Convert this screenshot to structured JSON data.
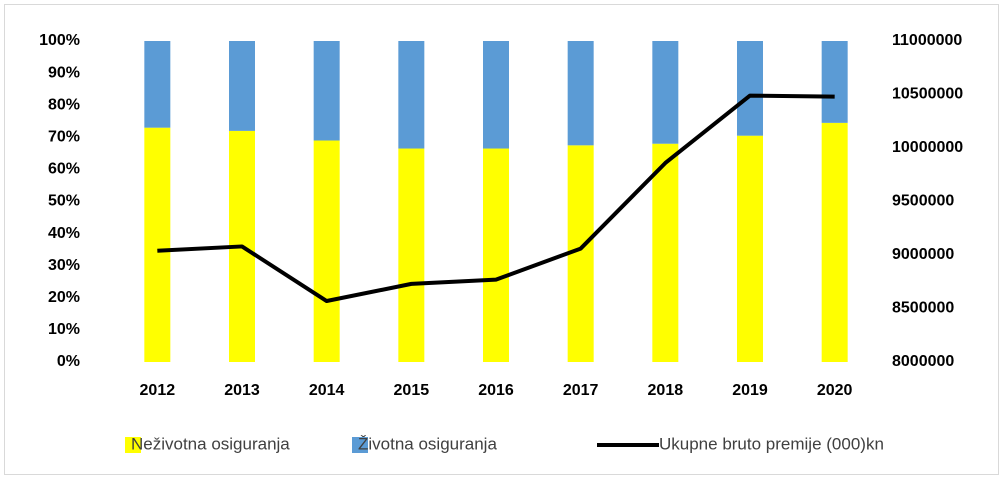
{
  "chart_data": {
    "type": "bar",
    "stacked": true,
    "categories": [
      "2012",
      "2013",
      "2014",
      "2015",
      "2016",
      "2017",
      "2018",
      "2019",
      "2020"
    ],
    "series": [
      {
        "name": "Neživotna osiguranja",
        "color": "#ffff00",
        "values": [
          73,
          72,
          69,
          66.5,
          66.5,
          67.5,
          68,
          70.5,
          74.5
        ]
      },
      {
        "name": "Životna osiguranja",
        "color": "#5b9bd5",
        "values": [
          27,
          28,
          31,
          33.5,
          33.5,
          32.5,
          32,
          29.5,
          25.5
        ]
      },
      {
        "name": "Ukupne bruto premije (000)kn",
        "color": "#000000",
        "type": "line",
        "axis": "y2",
        "values": [
          9040000,
          9080000,
          8570000,
          8730000,
          8770000,
          9060000,
          9860000,
          10490000,
          10480000
        ]
      }
    ],
    "ylim": [
      0,
      100
    ],
    "yticks": [
      {
        "value": 0,
        "label": "0%"
      },
      {
        "value": 10,
        "label": "10%"
      },
      {
        "value": 20,
        "label": "20%"
      },
      {
        "value": 30,
        "label": "30%"
      },
      {
        "value": 40,
        "label": "40%"
      },
      {
        "value": 50,
        "label": "50%"
      },
      {
        "value": 60,
        "label": "60%"
      },
      {
        "value": 70,
        "label": "70%"
      },
      {
        "value": 80,
        "label": "80%"
      },
      {
        "value": 90,
        "label": "90%"
      },
      {
        "value": 100,
        "label": "100%"
      }
    ],
    "y2lim": [
      8000000,
      11000000
    ],
    "y2ticks": [
      8000000,
      8500000,
      9000000,
      9500000,
      10000000,
      10500000,
      11000000
    ],
    "legend": "bottom"
  }
}
